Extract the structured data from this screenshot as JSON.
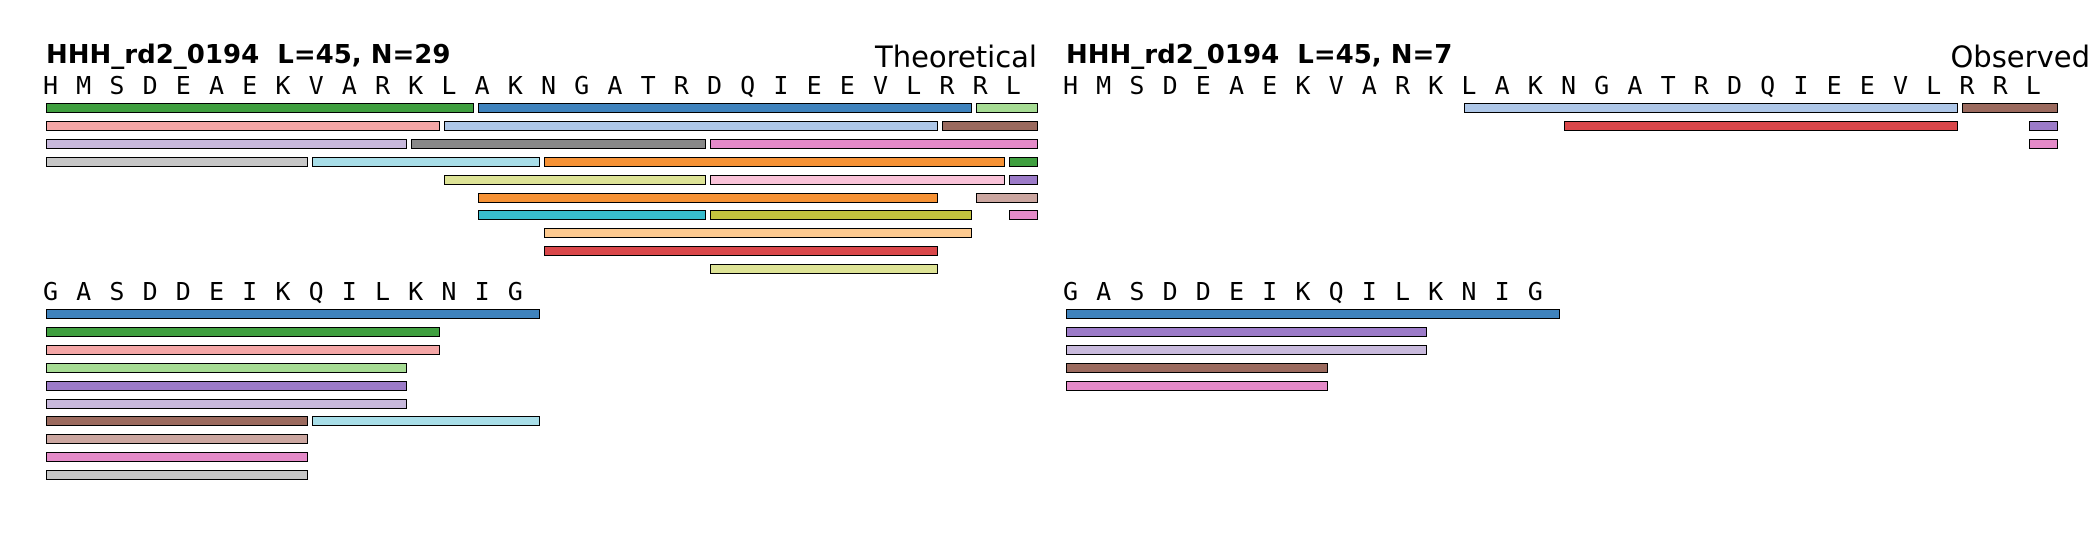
{
  "colors": {
    "blue": "#3f83bd",
    "green": "#3f9f3f",
    "pink_light": "#f4a6a6",
    "light_green": "#a6dc94",
    "purple": "#9c7bc8",
    "lavender": "#c8b9dc",
    "brown": "#9b6a5e",
    "rose_brown": "#cba6a0",
    "magenta_pink": "#e48ac8",
    "silver": "#c7c7c7",
    "light_cyan": "#a8dee8",
    "light_blue": "#aec7e8",
    "gray": "#888888",
    "orange": "#f69235",
    "khaki": "#dde396",
    "pale_pink": "#f9c2d8",
    "cyan": "#38bccd",
    "olive": "#c2c23e",
    "peach": "#fdca90",
    "red": "#d9474a"
  },
  "panels": [
    {
      "title": "HHH_rd2_0194  L=45, N=29",
      "label": "Theoretical",
      "rows": [
        {
          "start": 1,
          "sequence": [
            "H",
            "M",
            "S",
            "D",
            "E",
            "A",
            "E",
            "K",
            "V",
            "A",
            "R",
            "K",
            "L",
            "A",
            "K",
            "N",
            "G",
            "A",
            "T",
            "R",
            "D",
            "Q",
            "I",
            "E",
            "E",
            "V",
            "L",
            "R",
            "R",
            "L"
          ],
          "peptides": [
            {
              "start": 1,
              "end": 13,
              "lane": 0,
              "color": "green"
            },
            {
              "start": 14,
              "end": 28,
              "lane": 0,
              "color": "blue"
            },
            {
              "start": 29,
              "end": 30,
              "lane": 0,
              "color": "light_green"
            },
            {
              "start": 1,
              "end": 12,
              "lane": 1,
              "color": "pink_light"
            },
            {
              "start": 13,
              "end": 27,
              "lane": 1,
              "color": "light_blue"
            },
            {
              "start": 28,
              "end": 30,
              "lane": 1,
              "color": "brown"
            },
            {
              "start": 1,
              "end": 11,
              "lane": 2,
              "color": "lavender"
            },
            {
              "start": 12,
              "end": 20,
              "lane": 2,
              "color": "gray"
            },
            {
              "start": 21,
              "end": 30,
              "lane": 2,
              "color": "magenta_pink"
            },
            {
              "start": 1,
              "end": 8,
              "lane": 3,
              "color": "silver"
            },
            {
              "start": 9,
              "end": 15,
              "lane": 3,
              "color": "light_cyan"
            },
            {
              "start": 16,
              "end": 29,
              "lane": 3,
              "color": "orange"
            },
            {
              "start": 30,
              "end": 30,
              "lane": 3,
              "color": "green"
            },
            {
              "start": 13,
              "end": 20,
              "lane": 4,
              "color": "khaki"
            },
            {
              "start": 21,
              "end": 29,
              "lane": 4,
              "color": "pale_pink"
            },
            {
              "start": 30,
              "end": 30,
              "lane": 4,
              "color": "purple"
            },
            {
              "start": 14,
              "end": 27,
              "lane": 5,
              "color": "orange"
            },
            {
              "start": 29,
              "end": 30,
              "lane": 5,
              "color": "rose_brown"
            },
            {
              "start": 14,
              "end": 20,
              "lane": 6,
              "color": "cyan"
            },
            {
              "start": 21,
              "end": 28,
              "lane": 6,
              "color": "olive"
            },
            {
              "start": 30,
              "end": 30,
              "lane": 6,
              "color": "magenta_pink"
            },
            {
              "start": 16,
              "end": 28,
              "lane": 7,
              "color": "peach"
            },
            {
              "start": 16,
              "end": 27,
              "lane": 8,
              "color": "red"
            },
            {
              "start": 21,
              "end": 27,
              "lane": 9,
              "color": "khaki"
            }
          ]
        },
        {
          "start": 31,
          "sequence": [
            "G",
            "A",
            "S",
            "D",
            "D",
            "E",
            "I",
            "K",
            "Q",
            "I",
            "L",
            "K",
            "N",
            "I",
            "G"
          ],
          "peptides": [
            {
              "start": 31,
              "end": 45,
              "lane": 0,
              "color": "blue"
            },
            {
              "start": 31,
              "end": 42,
              "lane": 1,
              "color": "green"
            },
            {
              "start": 31,
              "end": 42,
              "lane": 2,
              "color": "pink_light"
            },
            {
              "start": 31,
              "end": 41,
              "lane": 3,
              "color": "light_green"
            },
            {
              "start": 31,
              "end": 41,
              "lane": 4,
              "color": "purple"
            },
            {
              "start": 31,
              "end": 41,
              "lane": 5,
              "color": "lavender"
            },
            {
              "start": 31,
              "end": 38,
              "lane": 6,
              "color": "brown"
            },
            {
              "start": 39,
              "end": 45,
              "lane": 6,
              "color": "light_cyan"
            },
            {
              "start": 31,
              "end": 38,
              "lane": 7,
              "color": "rose_brown"
            },
            {
              "start": 31,
              "end": 38,
              "lane": 8,
              "color": "magenta_pink"
            },
            {
              "start": 31,
              "end": 38,
              "lane": 9,
              "color": "silver"
            }
          ]
        }
      ]
    },
    {
      "title": "HHH_rd2_0194  L=45, N=7",
      "label": "Observed",
      "rows": [
        {
          "start": 1,
          "sequence": [
            "H",
            "M",
            "S",
            "D",
            "E",
            "A",
            "E",
            "K",
            "V",
            "A",
            "R",
            "K",
            "L",
            "A",
            "K",
            "N",
            "G",
            "A",
            "T",
            "R",
            "D",
            "Q",
            "I",
            "E",
            "E",
            "V",
            "L",
            "R",
            "R",
            "L"
          ],
          "peptides": [
            {
              "start": 13,
              "end": 27,
              "lane": 0,
              "color": "light_blue"
            },
            {
              "start": 28,
              "end": 30,
              "lane": 0,
              "color": "brown"
            },
            {
              "start": 16,
              "end": 27,
              "lane": 1,
              "color": "red"
            },
            {
              "start": 30,
              "end": 30,
              "lane": 1,
              "color": "purple"
            },
            {
              "start": 30,
              "end": 30,
              "lane": 2,
              "color": "magenta_pink"
            }
          ]
        },
        {
          "start": 31,
          "sequence": [
            "G",
            "A",
            "S",
            "D",
            "D",
            "E",
            "I",
            "K",
            "Q",
            "I",
            "L",
            "K",
            "N",
            "I",
            "G"
          ],
          "peptides": [
            {
              "start": 31,
              "end": 45,
              "lane": 0,
              "color": "blue"
            },
            {
              "start": 31,
              "end": 41,
              "lane": 1,
              "color": "purple"
            },
            {
              "start": 31,
              "end": 41,
              "lane": 2,
              "color": "lavender"
            },
            {
              "start": 31,
              "end": 38,
              "lane": 3,
              "color": "brown"
            },
            {
              "start": 31,
              "end": 38,
              "lane": 4,
              "color": "magenta_pink"
            }
          ]
        }
      ]
    }
  ]
}
